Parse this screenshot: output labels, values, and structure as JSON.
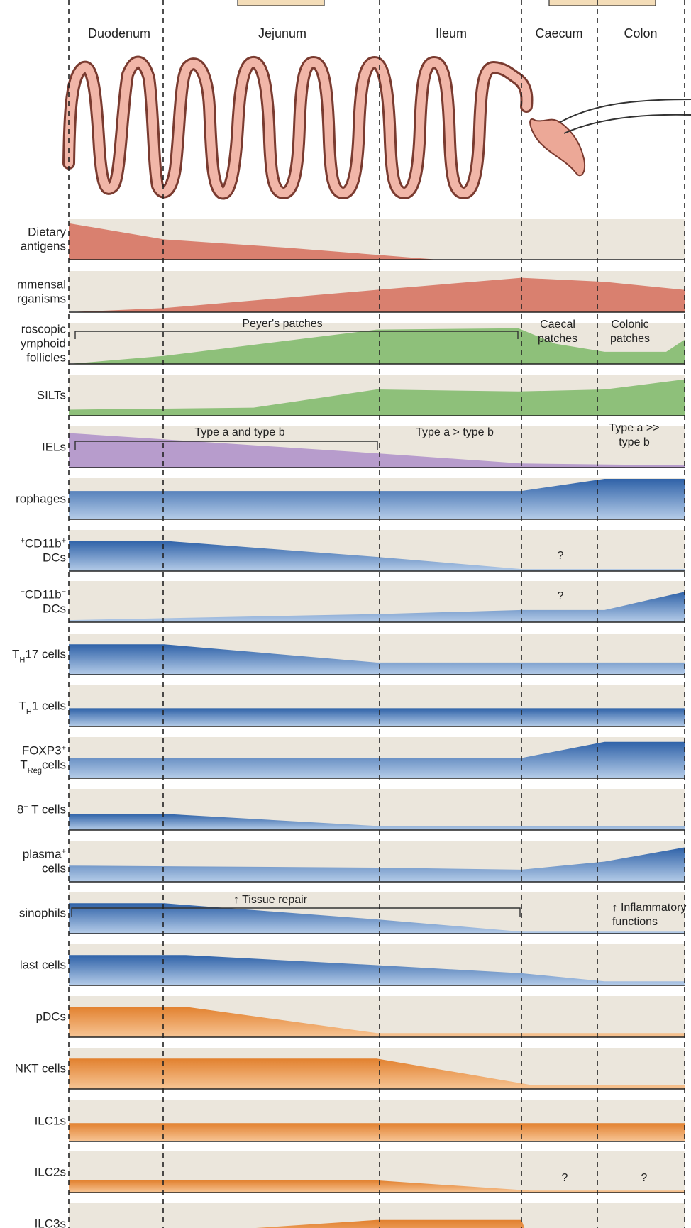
{
  "colors": {
    "band": "#ebe6dc",
    "diet": "#d9806f",
    "commensal": "#d9806f",
    "lymphoid": "#8ec07a",
    "iel": "#b79ccc",
    "blue_top": "#3a6db0",
    "blue_bottom": "#a9c3e3",
    "orange_top": "#e58a43",
    "orange_bottom": "#f5be8c",
    "gut_fill": "#f1b6a8",
    "gut_stroke": "#7a3b30",
    "header_box": "#f4ddb8"
  },
  "regions": {
    "duodenum": "Duodenum",
    "jejunum": "Jejunum",
    "ileum": "Ileum",
    "caecum": "Caecum",
    "colon": "Colon"
  },
  "rows": [
    {
      "key": "dietary",
      "line1": "Dietary",
      "line2": "antigens",
      "color": "diet",
      "profile": [
        [
          0.0,
          0.9
        ],
        [
          0.155,
          0.5
        ],
        [
          0.35,
          0.3
        ],
        [
          0.6,
          0.0
        ],
        [
          1.0,
          0.0
        ]
      ]
    },
    {
      "key": "commensal",
      "line1": "mmensal",
      "line2": "rganisms",
      "color": "commensal",
      "profile": [
        [
          0.0,
          0.0
        ],
        [
          0.155,
          0.1
        ],
        [
          0.5,
          0.55
        ],
        [
          0.735,
          0.85
        ],
        [
          0.87,
          0.75
        ],
        [
          1.0,
          0.55
        ]
      ]
    },
    {
      "key": "lymphoid",
      "line1": "roscopic",
      "line2": "ymphoid",
      "line3": "follicles",
      "color": "lymphoid",
      "profile": [
        [
          0.0,
          0.0
        ],
        [
          0.155,
          0.2
        ],
        [
          0.5,
          0.85
        ],
        [
          0.73,
          0.88
        ],
        [
          0.79,
          0.5
        ],
        [
          0.87,
          0.3
        ],
        [
          0.97,
          0.3
        ],
        [
          1.0,
          0.6
        ]
      ]
    },
    {
      "key": "silt",
      "line1": "SILTs",
      "color": "lymphoid",
      "profile": [
        [
          0.0,
          0.15
        ],
        [
          0.3,
          0.2
        ],
        [
          0.5,
          0.65
        ],
        [
          0.73,
          0.6
        ],
        [
          0.87,
          0.65
        ],
        [
          1.0,
          0.9
        ]
      ]
    },
    {
      "key": "iel",
      "line1": "IELs",
      "color": "iel",
      "profile": [
        [
          0.0,
          0.85
        ],
        [
          0.5,
          0.35
        ],
        [
          0.735,
          0.1
        ],
        [
          1.0,
          0.05
        ]
      ]
    },
    {
      "key": "macrophages",
      "line1": "rophages",
      "color": "blue",
      "profile": [
        [
          0.0,
          0.7
        ],
        [
          0.735,
          0.7
        ],
        [
          0.87,
          1.0
        ],
        [
          1.0,
          1.0
        ]
      ]
    },
    {
      "key": "cd103_cd11b_pos",
      "line1": "CD11b",
      "sup1": "+",
      "pre1": "+",
      "line2": "DCs",
      "color": "blue",
      "profile": [
        [
          0.0,
          0.75
        ],
        [
          0.155,
          0.75
        ],
        [
          0.5,
          0.35
        ],
        [
          0.735,
          0.05
        ],
        [
          1.0,
          0.05
        ]
      ]
    },
    {
      "key": "cd103_cd11b_neg",
      "line1": "CD11b",
      "sup1": "−",
      "pre1": "+",
      "line2": "DCs",
      "color": "blue",
      "profile": [
        [
          0.0,
          0.05
        ],
        [
          0.5,
          0.2
        ],
        [
          0.735,
          0.3
        ],
        [
          0.87,
          0.3
        ],
        [
          1.0,
          0.75
        ]
      ]
    },
    {
      "key": "th17",
      "line1": "17 cells",
      "sub1": "H",
      "pre1": "T",
      "color": "blue",
      "profile": [
        [
          0.0,
          0.75
        ],
        [
          0.155,
          0.75
        ],
        [
          0.5,
          0.3
        ],
        [
          1.0,
          0.3
        ]
      ]
    },
    {
      "key": "th1",
      "line1": "1 cells",
      "sub1": "H",
      "pre1": "T",
      "color": "blue",
      "profile": [
        [
          0.0,
          0.45
        ],
        [
          1.0,
          0.45
        ]
      ]
    },
    {
      "key": "treg",
      "line1": "FOXP3",
      "sup1": "+",
      "line2": "cells",
      "sub2": "Reg",
      "pre2": "T",
      "color": "blue",
      "profile": [
        [
          0.0,
          0.5
        ],
        [
          0.735,
          0.5
        ],
        [
          0.87,
          0.9
        ],
        [
          1.0,
          0.9
        ]
      ]
    },
    {
      "key": "cd8",
      "line1": "8",
      "sup1": "+",
      "post1": " T cells",
      "color": "blue",
      "profile": [
        [
          0.0,
          0.4
        ],
        [
          0.155,
          0.4
        ],
        [
          0.5,
          0.1
        ],
        [
          1.0,
          0.1
        ]
      ]
    },
    {
      "key": "iga_plasma",
      "line1": "plasma",
      "sup1": "+",
      "line2": "cells",
      "color": "blue",
      "profile": [
        [
          0.0,
          0.4
        ],
        [
          0.5,
          0.35
        ],
        [
          0.735,
          0.3
        ],
        [
          0.87,
          0.5
        ],
        [
          1.0,
          0.85
        ]
      ]
    },
    {
      "key": "eosinophils",
      "line1": "sinophils",
      "color": "blue",
      "profile": [
        [
          0.0,
          0.75
        ],
        [
          0.155,
          0.75
        ],
        [
          0.5,
          0.35
        ],
        [
          0.735,
          0.05
        ],
        [
          1.0,
          0.05
        ]
      ]
    },
    {
      "key": "mast",
      "line1": "last cells",
      "color": "blue",
      "profile": [
        [
          0.0,
          0.75
        ],
        [
          0.19,
          0.75
        ],
        [
          0.5,
          0.5
        ],
        [
          0.735,
          0.3
        ],
        [
          0.87,
          0.1
        ],
        [
          1.0,
          0.1
        ]
      ]
    },
    {
      "key": "pdc",
      "line1": "pDCs",
      "color": "orange",
      "profile": [
        [
          0.0,
          0.75
        ],
        [
          0.19,
          0.75
        ],
        [
          0.5,
          0.1
        ],
        [
          1.0,
          0.1
        ]
      ]
    },
    {
      "key": "nkt",
      "line1": "NKT cells",
      "color": "orange",
      "profile": [
        [
          0.0,
          0.75
        ],
        [
          0.5,
          0.75
        ],
        [
          0.75,
          0.1
        ],
        [
          1.0,
          0.1
        ]
      ]
    },
    {
      "key": "ilc1",
      "line1": "ILC1s",
      "color": "orange",
      "profile": [
        [
          0.0,
          0.45
        ],
        [
          1.0,
          0.45
        ]
      ]
    },
    {
      "key": "ilc2",
      "line1": "ILC2s",
      "color": "orange",
      "profile": [
        [
          0.0,
          0.3
        ],
        [
          0.5,
          0.3
        ],
        [
          0.75,
          0.05
        ],
        [
          1.0,
          0.05
        ]
      ]
    },
    {
      "key": "ilc3",
      "line1": "ILC3s",
      "color": "orange",
      "profile": [
        [
          0.0,
          0.1
        ],
        [
          0.5,
          0.6
        ],
        [
          0.735,
          0.6
        ],
        [
          0.75,
          0.0
        ],
        [
          1.0,
          0.0
        ]
      ]
    }
  ],
  "annotations": {
    "peyers": "Peyer's patches",
    "caecal1": "Caecal",
    "caecal2": "patches",
    "colonic1": "Colonic",
    "colonic2": "patches",
    "iel_ab": "Type a and type b",
    "iel_agtb": "Type a > type b",
    "iel_agg1": "Type a >>",
    "iel_agg2": "type b",
    "q": "?",
    "tissue_repair": "↑ Tissue repair",
    "inflam1": "↑ Inflammatory",
    "inflam2": "functions"
  }
}
